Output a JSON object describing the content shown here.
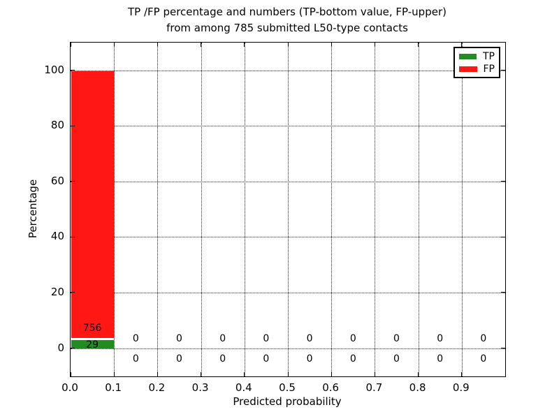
{
  "figure": {
    "title_line1": "TP /FP percentage and numbers (TP-bottom value, FP-upper)",
    "title_line2": "from among 785 submitted L50-type contacts"
  },
  "chart_data": {
    "type": "bar",
    "stacked": true,
    "title": "TP /FP percentage and numbers (TP-bottom value, FP-upper)\nfrom among 785 submitted L50-type contacts",
    "xlabel": "Predicted probability",
    "ylabel": "Percentage",
    "xlim": [
      0.0,
      1.0
    ],
    "ylim": [
      -10,
      110
    ],
    "xticks": [
      0.0,
      0.1,
      0.2,
      0.3,
      0.4,
      0.5,
      0.6,
      0.7,
      0.8,
      0.9
    ],
    "xtick_labels": [
      "0.0",
      "0.1",
      "0.2",
      "0.3",
      "0.4",
      "0.5",
      "0.6",
      "0.7",
      "0.8",
      "0.9"
    ],
    "yticks": [
      0,
      20,
      40,
      60,
      80,
      100
    ],
    "ytick_labels": [
      "0",
      "20",
      "40",
      "60",
      "80",
      "100"
    ],
    "grid": "dotted",
    "total_submitted": 785,
    "bin_width": 0.1,
    "bin_centers": [
      0.05,
      0.15,
      0.25,
      0.35,
      0.45,
      0.55,
      0.65,
      0.75,
      0.85,
      0.95
    ],
    "series": [
      {
        "name": "TP",
        "color": "#228B22",
        "counts": [
          29,
          0,
          0,
          0,
          0,
          0,
          0,
          0,
          0,
          0
        ],
        "pct": [
          3.69,
          0,
          0,
          0,
          0,
          0,
          0,
          0,
          0,
          0
        ]
      },
      {
        "name": "FP",
        "color": "#FF1714",
        "counts": [
          756,
          0,
          0,
          0,
          0,
          0,
          0,
          0,
          0,
          0
        ],
        "pct": [
          96.31,
          0,
          0,
          0,
          0,
          0,
          0,
          0,
          0,
          0
        ]
      }
    ],
    "annotation_note": "FP count shown in upper row, TP count in lower row, per bin",
    "legend": {
      "position": "upper right",
      "entries": [
        "TP",
        "FP"
      ]
    }
  }
}
